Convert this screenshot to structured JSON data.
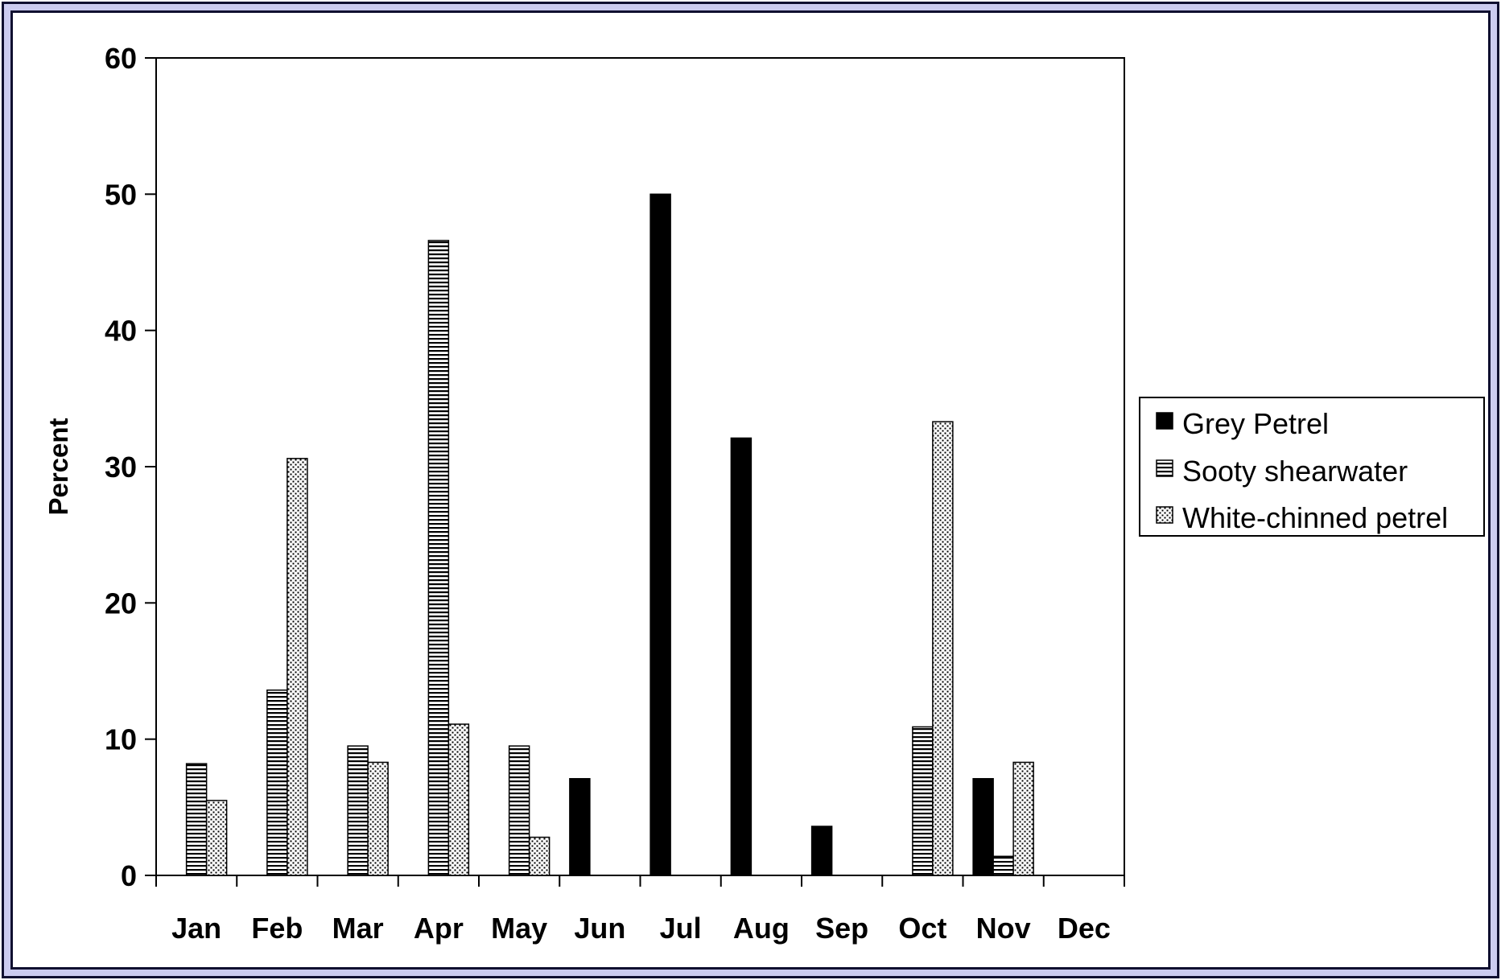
{
  "chart_data": {
    "type": "bar",
    "title": "",
    "xlabel": "",
    "ylabel": "Percent",
    "ylim": [
      0,
      60
    ],
    "yticks": [
      "0",
      "10",
      "20",
      "30",
      "40",
      "50",
      "60"
    ],
    "categories": [
      "Jan",
      "Feb",
      "Mar",
      "Apr",
      "May",
      "Jun",
      "Jul",
      "Aug",
      "Sep",
      "Oct",
      "Nov",
      "Dec"
    ],
    "series": [
      {
        "name": "Grey Petrel",
        "pattern": "solid",
        "values": [
          0,
          0,
          0,
          0,
          0,
          7.1,
          50,
          32.1,
          3.6,
          0,
          7.1,
          0
        ]
      },
      {
        "name": "Sooty shearwater",
        "pattern": "horizontal-lines",
        "values": [
          8.2,
          13.6,
          9.5,
          46.6,
          9.5,
          0,
          0,
          0,
          0,
          10.9,
          1.4,
          0
        ]
      },
      {
        "name": "White-chinned petrel",
        "pattern": "dots",
        "values": [
          5.5,
          30.6,
          8.3,
          11.1,
          2.8,
          0,
          0,
          0,
          0,
          33.3,
          8.3,
          0
        ]
      }
    ],
    "legend": {
      "position": "right"
    },
    "grid": false,
    "colors": {
      "ink": "#000000",
      "frame": "#101030",
      "frame_fill": "#ccccf0",
      "background": "#ffffff"
    }
  }
}
